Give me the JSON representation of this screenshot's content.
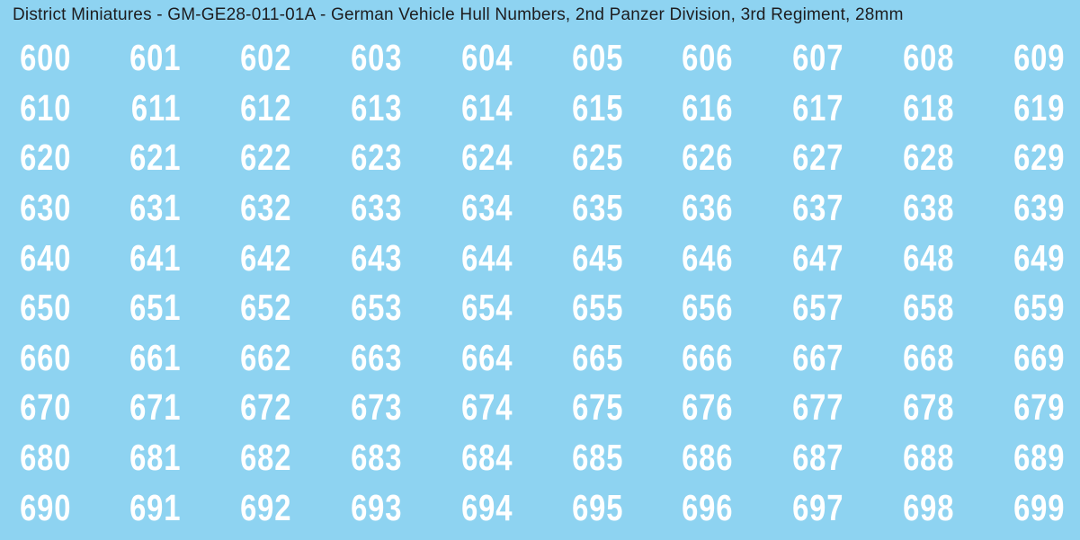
{
  "title": "District Miniatures - GM-GE28-011-01A - German Vehicle Hull Numbers, 2nd Panzer Division, 3rd Regiment, 28mm",
  "colors": {
    "sheet-bg": "#8ed3f1",
    "number-color": "#ffffff",
    "title-color": "#1d1d1f"
  },
  "grid": {
    "rows": [
      [
        "600",
        "601",
        "602",
        "603",
        "604",
        "605",
        "606",
        "607",
        "608",
        "609"
      ],
      [
        "610",
        "611",
        "612",
        "613",
        "614",
        "615",
        "616",
        "617",
        "618",
        "619"
      ],
      [
        "620",
        "621",
        "622",
        "623",
        "624",
        "625",
        "626",
        "627",
        "628",
        "629"
      ],
      [
        "630",
        "631",
        "632",
        "633",
        "634",
        "635",
        "636",
        "637",
        "638",
        "639"
      ],
      [
        "640",
        "641",
        "642",
        "643",
        "644",
        "645",
        "646",
        "647",
        "648",
        "649"
      ],
      [
        "650",
        "651",
        "652",
        "653",
        "654",
        "655",
        "656",
        "657",
        "658",
        "659"
      ],
      [
        "660",
        "661",
        "662",
        "663",
        "664",
        "665",
        "666",
        "667",
        "668",
        "669"
      ],
      [
        "670",
        "671",
        "672",
        "673",
        "674",
        "675",
        "676",
        "677",
        "678",
        "679"
      ],
      [
        "680",
        "681",
        "682",
        "683",
        "684",
        "685",
        "686",
        "687",
        "688",
        "689"
      ],
      [
        "690",
        "691",
        "692",
        "693",
        "694",
        "695",
        "696",
        "697",
        "698",
        "699"
      ]
    ]
  }
}
